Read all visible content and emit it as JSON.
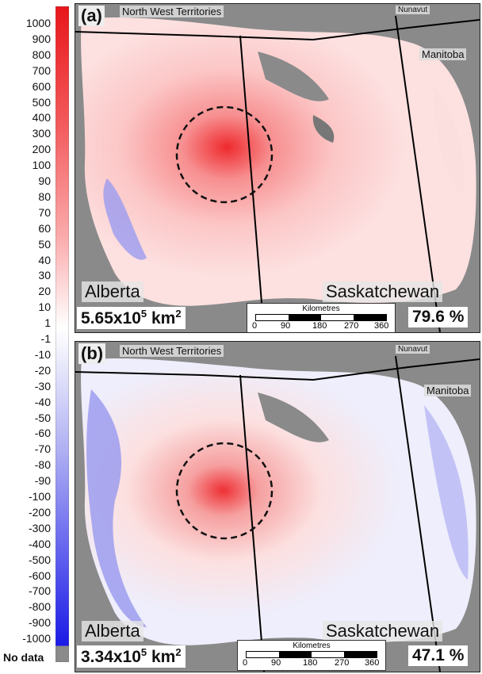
{
  "legend": {
    "positive_labels": [
      "1000",
      "900",
      "800",
      "700",
      "600",
      "500",
      "400",
      "300",
      "200",
      "100",
      "90",
      "80",
      "70",
      "60",
      "50",
      "40",
      "30",
      "20",
      "10",
      "1"
    ],
    "negative_labels": [
      "-1",
      "-10",
      "-20",
      "-30",
      "-40",
      "-50",
      "-60",
      "-70",
      "-80",
      "-90",
      "-100",
      "-200",
      "-300",
      "-400",
      "-500",
      "-600",
      "-700",
      "-800",
      "-900",
      "-1000"
    ],
    "no_data_label": "No data",
    "colors": {
      "max_positive": "#e8161a",
      "zero": "#ffffff",
      "max_negative": "#1a1ae6",
      "no_data": "#8a8a8a"
    }
  },
  "panels": [
    {
      "letter": "(a)",
      "territory_nwt": "North West Territories",
      "territory_nunavut": "Nunavut",
      "province_manitoba": "Manitoba",
      "province_alberta": "Alberta",
      "province_saskatchewan": "Saskatchewan",
      "area_value": "5.65x10",
      "area_exp": "5",
      "area_unit": " km",
      "area_unit_exp": "2",
      "percent": "79.6 %",
      "scale_title": "Kilometres",
      "scale_ticks": [
        "0",
        "90",
        "180",
        "270",
        "360"
      ]
    },
    {
      "letter": "(b)",
      "territory_nwt": "North West Territories",
      "territory_nunavut": "Nunavut",
      "province_manitoba": "Manitoba",
      "province_alberta": "Alberta",
      "province_saskatchewan": "Saskatchewan",
      "area_value": "3.34x10",
      "area_exp": "5",
      "area_unit": " km",
      "area_unit_exp": "2",
      "percent": "47.1 %",
      "scale_title": "Kilometres",
      "scale_ticks": [
        "0",
        "90",
        "180",
        "270",
        "360"
      ]
    }
  ]
}
